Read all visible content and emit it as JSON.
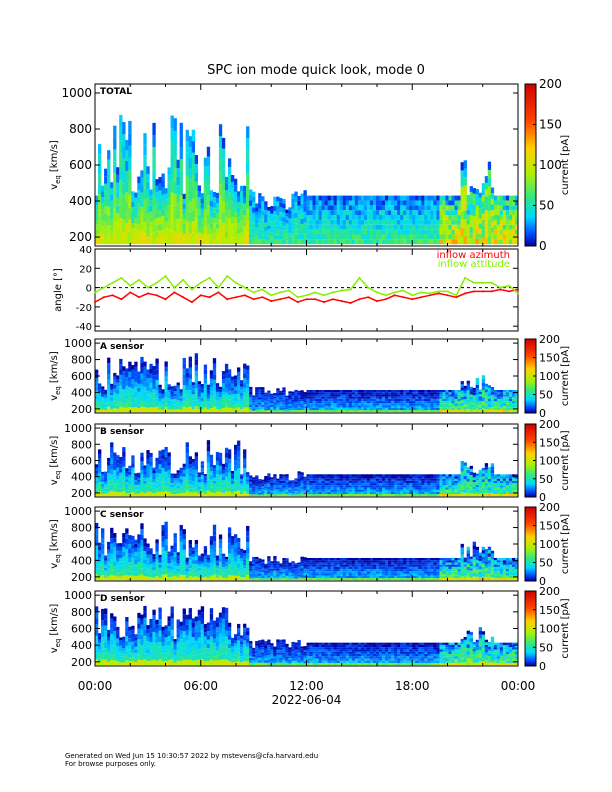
{
  "chart_data": {
    "type": "heatmap",
    "title": "SPC ion mode quick look, mode 0",
    "x_ticks": [
      "00:00",
      "06:00",
      "12:00",
      "18:00",
      "00:00"
    ],
    "x_date_label": "2022-06-04",
    "x_range_hours": [
      0,
      24
    ],
    "panels": [
      {
        "id": "total",
        "type": "heatmap",
        "label": "TOTAL",
        "ylabel_main": "v",
        "ylabel_sub": "eq",
        "ylabel_unit": "[km/s]",
        "ylim": [
          150,
          1050
        ],
        "yticks": [
          "200",
          "400",
          "600",
          "800",
          "1000"
        ],
        "ytick_values": [
          200,
          400,
          600,
          800,
          1000
        ],
        "colorbar": {
          "label": "current [pA]",
          "range": [
            0,
            200
          ],
          "ticks": [
            "0",
            "50",
            "100",
            "150",
            "200"
          ],
          "tick_values": [
            0,
            50,
            100,
            150,
            200
          ]
        }
      },
      {
        "id": "angle",
        "type": "line",
        "ylabel": "angle [°]",
        "ylim": [
          -45,
          40
        ],
        "yticks": [
          "-40",
          "-20",
          "0",
          "20",
          "40"
        ],
        "ytick_values": [
          -40,
          -20,
          0,
          20,
          40
        ],
        "series": [
          {
            "name": "inflow azimuth",
            "color": "#ff0000",
            "x": [
              0,
              0.5,
              1,
              1.5,
              2,
              2.5,
              3,
              3.5,
              4,
              4.5,
              5,
              5.5,
              6,
              6.5,
              7,
              7.5,
              8,
              8.5,
              9,
              9.5,
              10,
              10.5,
              11,
              11.5,
              12,
              12.5,
              13,
              13.5,
              14,
              14.5,
              15,
              15.5,
              16,
              16.5,
              17,
              17.5,
              18,
              18.5,
              19,
              19.5,
              20,
              20.5,
              21,
              21.5,
              22,
              22.5,
              23,
              23.5,
              24
            ],
            "values": [
              -15,
              -10,
              -8,
              -12,
              -5,
              -10,
              -6,
              -8,
              -12,
              -5,
              -10,
              -15,
              -8,
              -10,
              -5,
              -12,
              -10,
              -8,
              -12,
              -10,
              -14,
              -12,
              -10,
              -15,
              -12,
              -12,
              -15,
              -12,
              -14,
              -16,
              -12,
              -10,
              -14,
              -12,
              -8,
              -10,
              -12,
              -10,
              -8,
              -6,
              -8,
              -10,
              -6,
              -4,
              -4,
              -4,
              -2,
              -4,
              -2
            ]
          },
          {
            "name": "inflow attitude",
            "color": "#88ee00",
            "x": [
              0,
              0.5,
              1,
              1.5,
              2,
              2.5,
              3,
              3.5,
              4,
              4.5,
              5,
              5.5,
              6,
              6.5,
              7,
              7.5,
              8,
              8.5,
              9,
              9.5,
              10,
              10.5,
              11,
              11.5,
              12,
              12.5,
              13,
              13.5,
              14,
              14.5,
              15,
              15.5,
              16,
              16.5,
              17,
              17.5,
              18,
              18.5,
              19,
              19.5,
              20,
              20.5,
              21,
              21.5,
              22,
              22.5,
              23,
              23.5,
              24
            ],
            "values": [
              -5,
              0,
              5,
              10,
              2,
              8,
              0,
              5,
              12,
              0,
              8,
              -2,
              5,
              10,
              0,
              12,
              5,
              0,
              -5,
              -2,
              -8,
              -5,
              -3,
              -10,
              -8,
              -5,
              -8,
              -5,
              -3,
              -2,
              10,
              0,
              -5,
              -8,
              -5,
              -3,
              -8,
              -5,
              -6,
              -4,
              -4,
              -8,
              10,
              5,
              5,
              5,
              0,
              2,
              -6
            ]
          }
        ]
      },
      {
        "id": "a",
        "type": "heatmap",
        "label": "A sensor",
        "ylabel_main": "v",
        "ylabel_sub": "eq",
        "ylabel_unit": "[km/s]",
        "ylim": [
          150,
          1050
        ],
        "yticks": [
          "200",
          "400",
          "600",
          "800",
          "1000"
        ],
        "ytick_values": [
          200,
          400,
          600,
          800,
          1000
        ],
        "colorbar": {
          "label": "current [pA]",
          "range": [
            0,
            200
          ],
          "ticks": [
            "0",
            "50",
            "100",
            "150",
            "200"
          ],
          "tick_values": [
            0,
            50,
            100,
            150,
            200
          ]
        }
      },
      {
        "id": "b",
        "type": "heatmap",
        "label": "B sensor",
        "ylabel_main": "v",
        "ylabel_sub": "eq",
        "ylabel_unit": "[km/s]",
        "ylim": [
          150,
          1050
        ],
        "yticks": [
          "200",
          "400",
          "600",
          "800",
          "1000"
        ],
        "ytick_values": [
          200,
          400,
          600,
          800,
          1000
        ],
        "colorbar": {
          "label": "current [pA]",
          "range": [
            0,
            200
          ],
          "ticks": [
            "0",
            "50",
            "100",
            "150",
            "200"
          ],
          "tick_values": [
            0,
            50,
            100,
            150,
            200
          ]
        }
      },
      {
        "id": "c",
        "type": "heatmap",
        "label": "C sensor",
        "ylabel_main": "v",
        "ylabel_sub": "eq",
        "ylabel_unit": "[km/s]",
        "ylim": [
          150,
          1050
        ],
        "yticks": [
          "200",
          "400",
          "600",
          "800",
          "1000"
        ],
        "ytick_values": [
          200,
          400,
          600,
          800,
          1000
        ],
        "colorbar": {
          "label": "current [pA]",
          "range": [
            0,
            200
          ],
          "ticks": [
            "0",
            "50",
            "100",
            "150",
            "200"
          ],
          "tick_values": [
            0,
            50,
            100,
            150,
            200
          ]
        }
      },
      {
        "id": "d",
        "type": "heatmap",
        "label": "D sensor",
        "ylabel_main": "v",
        "ylabel_sub": "eq",
        "ylabel_unit": "[km/s]",
        "ylim": [
          150,
          1050
        ],
        "yticks": [
          "200",
          "400",
          "600",
          "800",
          "1000"
        ],
        "ytick_values": [
          200,
          400,
          600,
          800,
          1000
        ],
        "colorbar": {
          "label": "current [pA]",
          "range": [
            0,
            200
          ],
          "ticks": [
            "0",
            "50",
            "100",
            "150",
            "200"
          ],
          "tick_values": [
            0,
            50,
            100,
            150,
            200
          ]
        }
      }
    ]
  },
  "footer": {
    "line1": "Generated on Wed Jun 15 10:30:57 2022 by mstevens@cfa.harvard.edu",
    "line2": "For browse purposes only."
  },
  "colors": {
    "azimuth": "#ff0000",
    "attitude": "#88ee00",
    "zero_line": "#000000"
  }
}
